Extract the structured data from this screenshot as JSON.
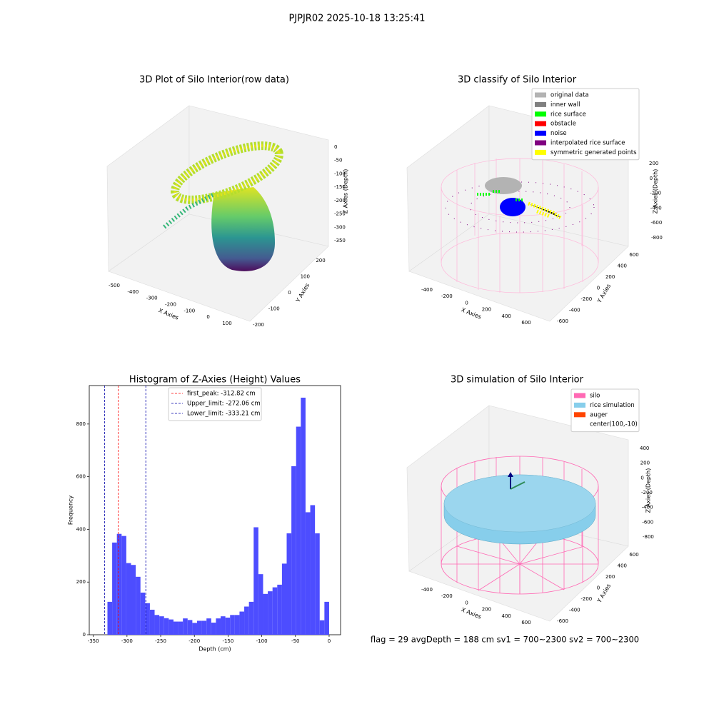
{
  "suptitle": "PJPJR02 2025-10-18 13:25:41",
  "chart_data": [
    {
      "type": "scatter3d",
      "title": "3D Plot of Silo Interior(row data)",
      "xlabel": "X Axies",
      "ylabel": "Y Axies",
      "zlabel": "Z Axies (Depth)",
      "xticks": [
        -500,
        -400,
        -300,
        -200,
        -100,
        0,
        100
      ],
      "yticks": [
        -200,
        -100,
        0,
        100,
        200
      ],
      "zticks": [
        0,
        -50,
        -100,
        -150,
        -200,
        -250,
        -300,
        -350
      ]
    },
    {
      "type": "scatter3d",
      "title": "3D classify of Silo Interior",
      "xlabel": "X Axies",
      "ylabel": "Y Axies",
      "zlabel": "Z Axies (Depth)",
      "xticks": [
        -400,
        -200,
        0,
        200,
        400,
        600
      ],
      "yticks": [
        -600,
        -400,
        -200,
        0,
        200,
        400,
        600
      ],
      "zticks": [
        200,
        0,
        -200,
        -400,
        -600,
        -800
      ],
      "legend": [
        {
          "name": "original data",
          "color": "#b3b3b3"
        },
        {
          "name": "inner wall",
          "color": "#808080"
        },
        {
          "name": "rice surface",
          "color": "#00ff00"
        },
        {
          "name": "obstacle",
          "color": "#ff0000"
        },
        {
          "name": "noise",
          "color": "#0000ff"
        },
        {
          "name": "interpolated rice surface",
          "color": "#800080"
        },
        {
          "name": "symmetric generated points",
          "color": "#ffff00"
        }
      ]
    },
    {
      "type": "histogram",
      "title": "Histogram of Z-Axies (Height) Values",
      "xlabel": "Depth (cm)",
      "ylabel": "Frequency",
      "color": "#4d4dff",
      "bins": [
        -329,
        -322,
        -315,
        -308,
        -301,
        -294,
        -287,
        -280,
        -273,
        -266,
        -259,
        -252,
        -245,
        -238,
        -231,
        -224,
        -217,
        -210,
        -203,
        -196,
        -189,
        -182,
        -175,
        -168,
        -161,
        -154,
        -147,
        -140,
        -133,
        -126,
        -119,
        -112,
        -105,
        -98,
        -91,
        -84,
        -77,
        -70,
        -63,
        -56,
        -49,
        -42,
        -35,
        -28,
        -21,
        -14,
        -7,
        0
      ],
      "values": [
        125,
        350,
        383,
        375,
        272,
        265,
        220,
        160,
        120,
        95,
        75,
        70,
        63,
        58,
        50,
        50,
        62,
        56,
        45,
        53,
        53,
        62,
        46,
        62,
        70,
        65,
        75,
        75,
        88,
        107,
        125,
        408,
        230,
        155,
        165,
        180,
        190,
        270,
        385,
        640,
        790,
        900,
        465,
        492,
        385,
        55,
        125
      ],
      "xlim": [
        -356,
        17
      ],
      "ylim": [
        0,
        946
      ],
      "xticks": [
        -350,
        -300,
        -250,
        -200,
        -150,
        -100,
        -50,
        0
      ],
      "yticks": [
        0,
        200,
        400,
        600,
        800
      ],
      "lines": [
        {
          "label": "first_peak: -312.82 cm",
          "value": -312.82,
          "color": "#ff0000"
        },
        {
          "label": "Upper_limit: -272.06 cm",
          "value": -272.06,
          "color": "#0000aa"
        },
        {
          "label": "Lower_limit: -333.21 cm",
          "value": -333.21,
          "color": "#0000aa"
        }
      ]
    },
    {
      "type": "surface3d",
      "title": "3D simulation of Silo Interior",
      "xlabel": "X Axies",
      "ylabel": "Y Axies",
      "zlabel": "Z Axies (Depth)",
      "xticks": [
        -400,
        -200,
        0,
        200,
        400,
        600
      ],
      "yticks": [
        -600,
        -400,
        -200,
        0,
        200,
        400,
        600
      ],
      "zticks": [
        400,
        200,
        0,
        -200,
        -400,
        -600,
        -800
      ],
      "legend": [
        {
          "name": "silo",
          "color": "#ff69b4"
        },
        {
          "name": "rice simulation",
          "color": "#87ceeb"
        },
        {
          "name": "auger",
          "color": "#ff4500"
        },
        {
          "name": "center(100,-10)"
        }
      ]
    }
  ],
  "footer": "flag = 29  avgDepth = 188 cm  sv1 = 700~2300  sv2 = 700~2300"
}
